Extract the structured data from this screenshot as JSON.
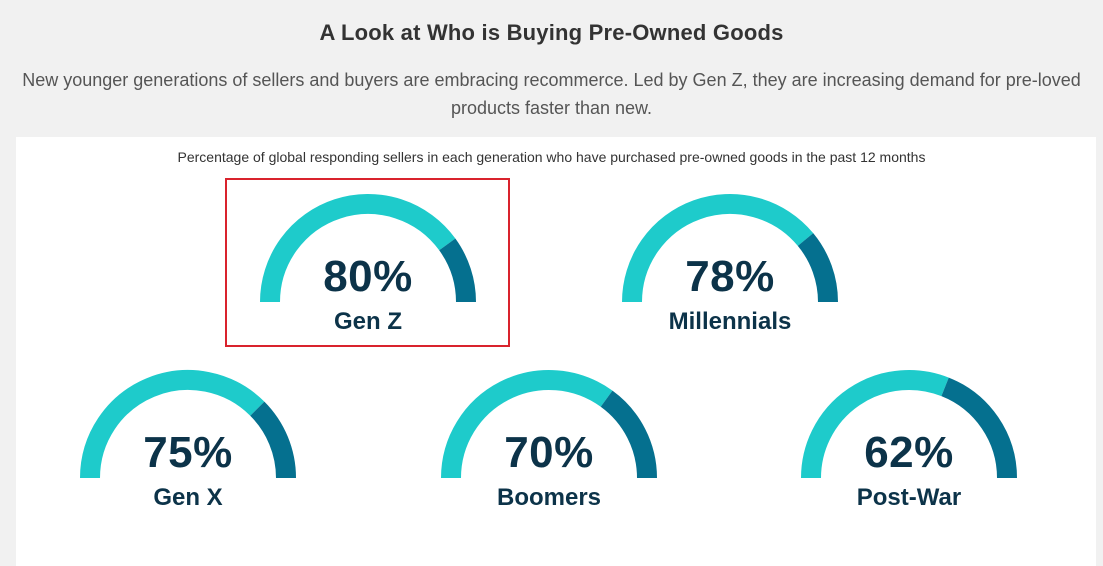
{
  "header": {
    "title": "A Look at Who is Buying Pre-Owned Goods",
    "subtitle": "New younger generations of sellers and buyers are embracing recommerce. Led by Gen Z, they are increasing demand for pre-loved products faster than new."
  },
  "colors": {
    "background": "#f1f1f1",
    "panel": "#ffffff",
    "arc_light": "#1ecbcb",
    "arc_dark": "#05708f",
    "text_dark": "#0c3349",
    "highlight_border": "#d9232d"
  },
  "chart_data": {
    "type": "gauge",
    "title": "Percentage of global responding sellers in each generation who have purchased pre-owned goods in the past 12 months",
    "unit": "%",
    "range": [
      0,
      100
    ],
    "highlighted": "Gen Z",
    "series": [
      {
        "name": "Gen Z",
        "value": 80,
        "label": "80%"
      },
      {
        "name": "Millennials",
        "value": 78,
        "label": "78%"
      },
      {
        "name": "Gen X",
        "value": 75,
        "label": "75%"
      },
      {
        "name": "Boomers",
        "value": 70,
        "label": "70%"
      },
      {
        "name": "Post-War",
        "value": 62,
        "label": "62%"
      }
    ]
  }
}
